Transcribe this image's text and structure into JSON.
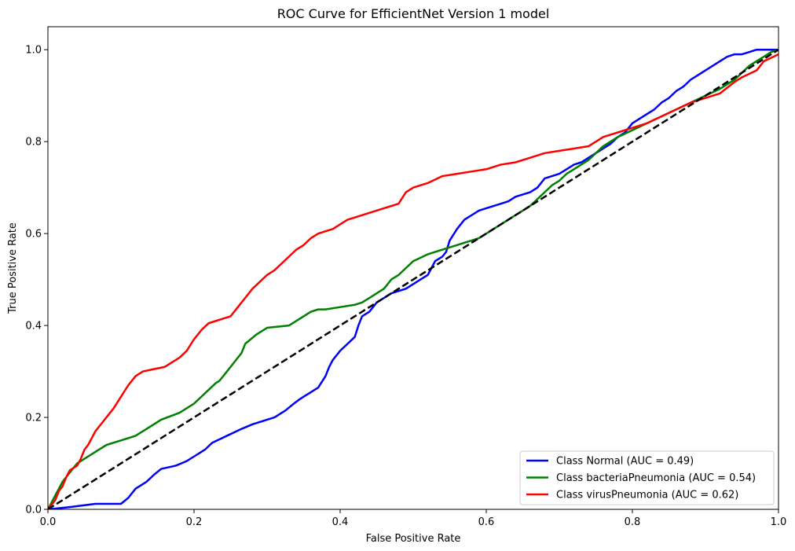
{
  "chart_data": {
    "type": "line",
    "title": "ROC Curve for EfficientNet Version 1 model",
    "xlabel": "False Positive Rate",
    "ylabel": "True Positive Rate",
    "xlim": [
      0,
      1
    ],
    "ylim": [
      0,
      1.05
    ],
    "xticks": [
      "0.0",
      "0.2",
      "0.4",
      "0.6",
      "0.8",
      "1.0"
    ],
    "yticks": [
      "0.0",
      "0.2",
      "0.4",
      "0.6",
      "0.8",
      "1.0"
    ],
    "grid": false,
    "legend_position": "lower-right",
    "chance_line": {
      "color": "#000000",
      "style": "dashed",
      "x": [
        0,
        1
      ],
      "y": [
        0,
        1
      ]
    },
    "series": [
      {
        "name": "Class Normal (AUC = 0.49)",
        "color": "#0000ff",
        "x": [
          0.0,
          0.03,
          0.065,
          0.1,
          0.11,
          0.12,
          0.135,
          0.145,
          0.155,
          0.175,
          0.19,
          0.2,
          0.215,
          0.225,
          0.245,
          0.265,
          0.28,
          0.3,
          0.31,
          0.325,
          0.335,
          0.345,
          0.35,
          0.36,
          0.37,
          0.38,
          0.385,
          0.39,
          0.395,
          0.4,
          0.41,
          0.42,
          0.425,
          0.43,
          0.44,
          0.445,
          0.45,
          0.46,
          0.47,
          0.48,
          0.49,
          0.5,
          0.51,
          0.52,
          0.53,
          0.54,
          0.545,
          0.55,
          0.56,
          0.57,
          0.58,
          0.59,
          0.6,
          0.61,
          0.62,
          0.63,
          0.64,
          0.65,
          0.66,
          0.67,
          0.675,
          0.68,
          0.69,
          0.7,
          0.71,
          0.72,
          0.73,
          0.74,
          0.75,
          0.76,
          0.77,
          0.78,
          0.79,
          0.8,
          0.81,
          0.82,
          0.83,
          0.84,
          0.85,
          0.86,
          0.87,
          0.88,
          0.89,
          0.9,
          0.91,
          0.92,
          0.93,
          0.94,
          0.95,
          0.96,
          0.97,
          0.98,
          0.99,
          1.0
        ],
        "y": [
          0.0,
          0.005,
          0.012,
          0.012,
          0.025,
          0.045,
          0.06,
          0.075,
          0.088,
          0.095,
          0.105,
          0.115,
          0.13,
          0.145,
          0.16,
          0.175,
          0.185,
          0.195,
          0.2,
          0.215,
          0.228,
          0.24,
          0.245,
          0.255,
          0.265,
          0.29,
          0.31,
          0.325,
          0.335,
          0.345,
          0.36,
          0.375,
          0.4,
          0.42,
          0.43,
          0.44,
          0.45,
          0.46,
          0.47,
          0.475,
          0.48,
          0.49,
          0.5,
          0.51,
          0.54,
          0.55,
          0.56,
          0.585,
          0.61,
          0.63,
          0.64,
          0.65,
          0.655,
          0.66,
          0.665,
          0.67,
          0.68,
          0.685,
          0.69,
          0.7,
          0.71,
          0.72,
          0.725,
          0.73,
          0.74,
          0.75,
          0.755,
          0.765,
          0.775,
          0.785,
          0.795,
          0.81,
          0.82,
          0.84,
          0.85,
          0.86,
          0.87,
          0.885,
          0.895,
          0.91,
          0.92,
          0.935,
          0.945,
          0.955,
          0.965,
          0.975,
          0.985,
          0.99,
          0.99,
          0.995,
          1.0,
          1.0,
          1.0,
          1.0
        ]
      },
      {
        "name": "Class bacteriaPneumonia (AUC = 0.54)",
        "color": "#008000",
        "x": [
          0.0,
          0.005,
          0.01,
          0.015,
          0.02,
          0.03,
          0.04,
          0.05,
          0.06,
          0.07,
          0.08,
          0.09,
          0.1,
          0.12,
          0.135,
          0.155,
          0.18,
          0.2,
          0.21,
          0.22,
          0.23,
          0.235,
          0.24,
          0.25,
          0.255,
          0.26,
          0.265,
          0.27,
          0.285,
          0.3,
          0.33,
          0.34,
          0.35,
          0.36,
          0.37,
          0.38,
          0.4,
          0.42,
          0.43,
          0.44,
          0.45,
          0.455,
          0.46,
          0.47,
          0.48,
          0.49,
          0.5,
          0.52,
          0.54,
          0.55,
          0.56,
          0.57,
          0.58,
          0.59,
          0.6,
          0.61,
          0.62,
          0.63,
          0.64,
          0.65,
          0.66,
          0.67,
          0.68,
          0.69,
          0.7,
          0.71,
          0.72,
          0.73,
          0.74,
          0.75,
          0.76,
          0.77,
          0.78,
          0.8,
          0.82,
          0.84,
          0.86,
          0.88,
          0.9,
          0.92,
          0.94,
          0.95,
          0.96,
          0.97,
          0.98,
          0.99,
          1.0
        ],
        "y": [
          0.0,
          0.015,
          0.03,
          0.045,
          0.06,
          0.08,
          0.1,
          0.11,
          0.12,
          0.13,
          0.14,
          0.145,
          0.15,
          0.16,
          0.175,
          0.195,
          0.21,
          0.23,
          0.245,
          0.26,
          0.275,
          0.28,
          0.29,
          0.31,
          0.32,
          0.33,
          0.34,
          0.36,
          0.38,
          0.395,
          0.4,
          0.41,
          0.42,
          0.43,
          0.435,
          0.435,
          0.44,
          0.445,
          0.45,
          0.46,
          0.47,
          0.475,
          0.48,
          0.5,
          0.51,
          0.525,
          0.54,
          0.555,
          0.565,
          0.57,
          0.575,
          0.58,
          0.585,
          0.59,
          0.6,
          0.61,
          0.62,
          0.63,
          0.64,
          0.65,
          0.66,
          0.675,
          0.69,
          0.705,
          0.715,
          0.73,
          0.74,
          0.75,
          0.76,
          0.775,
          0.79,
          0.8,
          0.81,
          0.825,
          0.84,
          0.855,
          0.87,
          0.885,
          0.9,
          0.915,
          0.935,
          0.95,
          0.965,
          0.975,
          0.985,
          0.995,
          1.0
        ]
      },
      {
        "name": "Class virusPneumonia (AUC = 0.62)",
        "color": "#ff0000",
        "x": [
          0.0,
          0.01,
          0.015,
          0.02,
          0.025,
          0.03,
          0.04,
          0.045,
          0.05,
          0.055,
          0.06,
          0.065,
          0.07,
          0.075,
          0.08,
          0.085,
          0.09,
          0.1,
          0.11,
          0.12,
          0.13,
          0.145,
          0.16,
          0.18,
          0.19,
          0.2,
          0.21,
          0.22,
          0.23,
          0.24,
          0.25,
          0.26,
          0.27,
          0.28,
          0.29,
          0.3,
          0.31,
          0.32,
          0.33,
          0.34,
          0.35,
          0.36,
          0.37,
          0.38,
          0.39,
          0.4,
          0.41,
          0.42,
          0.44,
          0.46,
          0.48,
          0.49,
          0.5,
          0.52,
          0.54,
          0.56,
          0.58,
          0.6,
          0.62,
          0.64,
          0.66,
          0.68,
          0.7,
          0.72,
          0.74,
          0.76,
          0.78,
          0.8,
          0.82,
          0.84,
          0.86,
          0.88,
          0.9,
          0.92,
          0.94,
          0.95,
          0.97,
          0.98,
          1.0
        ],
        "y": [
          0.0,
          0.02,
          0.04,
          0.05,
          0.07,
          0.085,
          0.095,
          0.11,
          0.13,
          0.14,
          0.155,
          0.17,
          0.18,
          0.19,
          0.2,
          0.21,
          0.22,
          0.245,
          0.27,
          0.29,
          0.3,
          0.305,
          0.31,
          0.33,
          0.345,
          0.37,
          0.39,
          0.405,
          0.41,
          0.415,
          0.42,
          0.44,
          0.46,
          0.48,
          0.495,
          0.51,
          0.52,
          0.535,
          0.55,
          0.565,
          0.575,
          0.59,
          0.6,
          0.605,
          0.61,
          0.62,
          0.63,
          0.635,
          0.645,
          0.655,
          0.665,
          0.69,
          0.7,
          0.71,
          0.725,
          0.73,
          0.735,
          0.74,
          0.75,
          0.755,
          0.765,
          0.775,
          0.78,
          0.785,
          0.79,
          0.81,
          0.82,
          0.83,
          0.84,
          0.855,
          0.87,
          0.885,
          0.895,
          0.905,
          0.93,
          0.94,
          0.955,
          0.975,
          0.99
        ]
      }
    ]
  }
}
